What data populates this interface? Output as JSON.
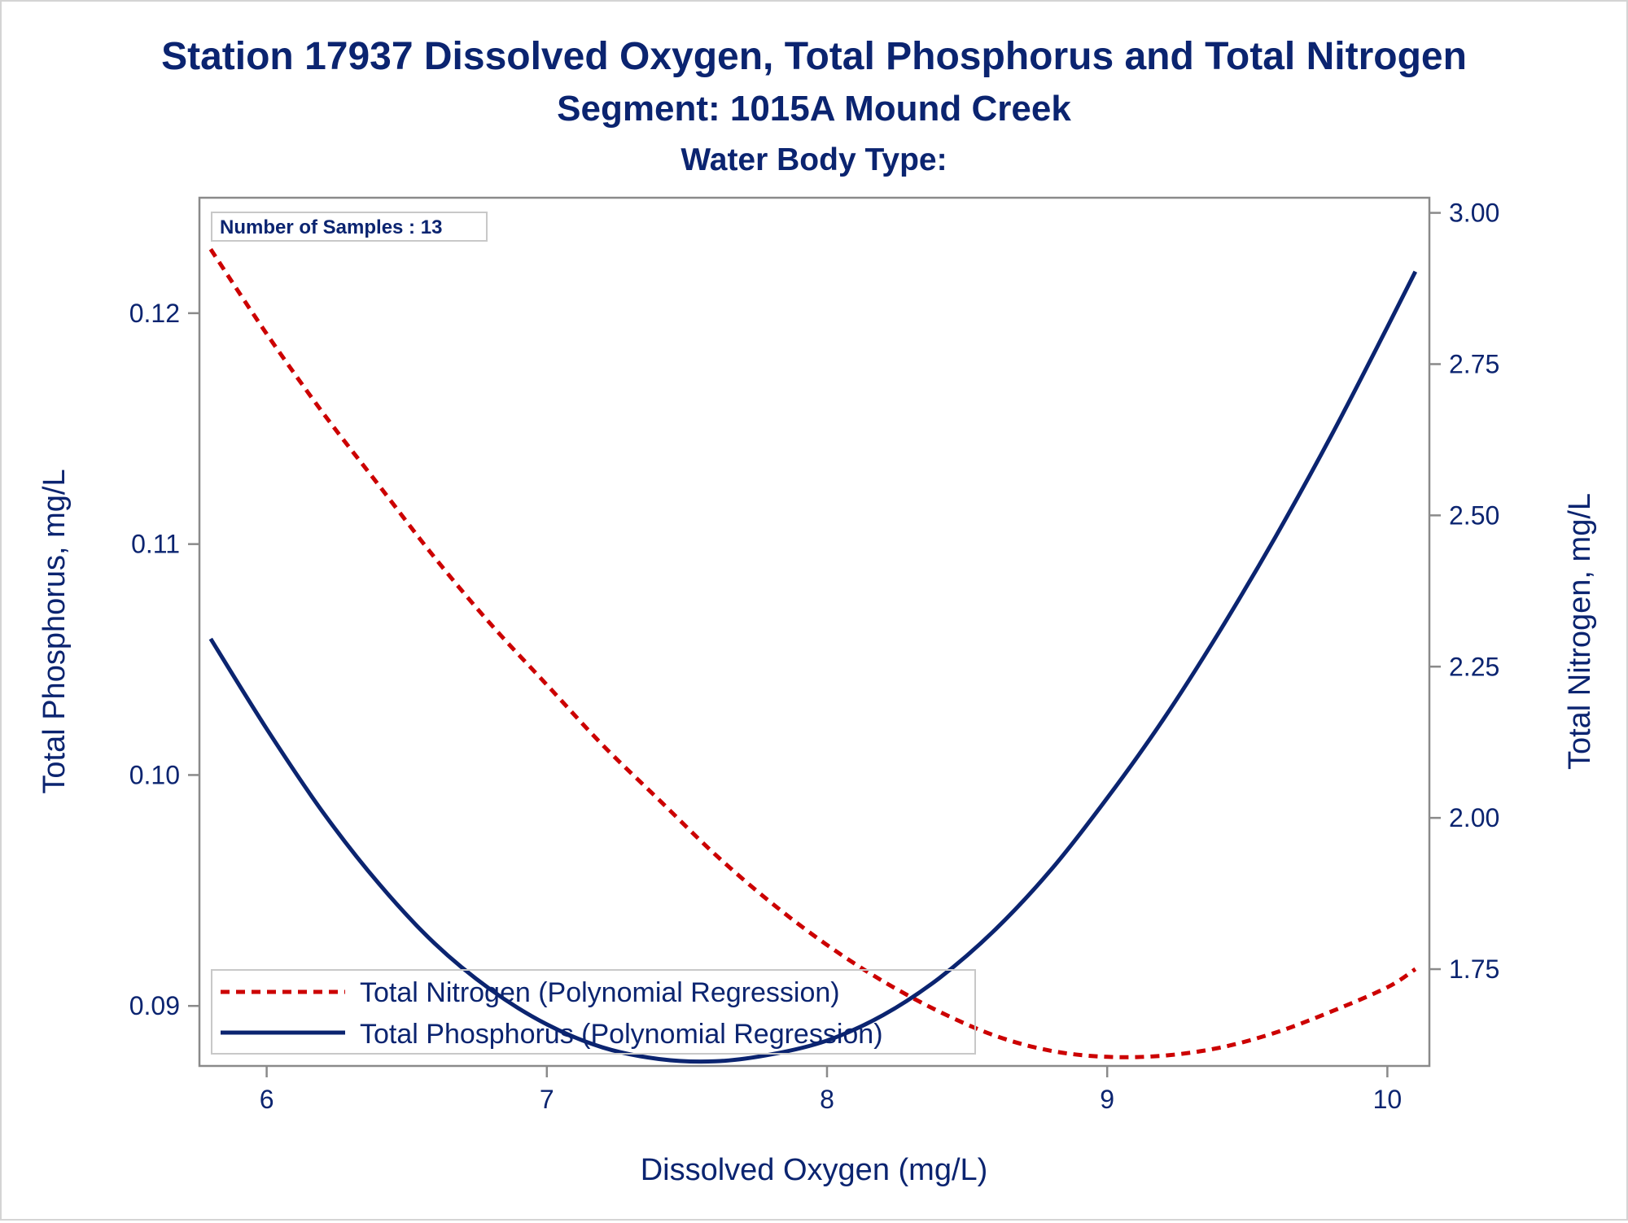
{
  "titles": {
    "line1": "Station 17937  Dissolved Oxygen, Total Phosphorus and Total Nitrogen",
    "line2": "Segment: 1015A  Mound Creek",
    "line3": "Water Body Type:"
  },
  "samples_label": "Number of Samples : 13",
  "colors": {
    "text": "#0b2470",
    "phosphorus": "#0b2470",
    "nitrogen": "#cc0000",
    "axis": "#8a8a8a",
    "frame": "#d4d4d4"
  },
  "chart_data": {
    "type": "line",
    "xlabel": "Dissolved Oxygen (mg/L)",
    "ylabel": "Total Phosphorus, mg/L",
    "y2label": "Total Nitrogen, mg/L",
    "xlim": [
      5.76,
      10.15
    ],
    "ylim": [
      0.0874,
      0.125
    ],
    "y2lim": [
      1.59,
      3.025
    ],
    "x_ticks": [
      "6",
      "7",
      "8",
      "9",
      "10"
    ],
    "y_ticks": [
      "0.09",
      "0.10",
      "0.11",
      "0.12"
    ],
    "y2_ticks": [
      "1.75",
      "2.00",
      "2.25",
      "2.50",
      "2.75",
      "3.00"
    ],
    "legend_position": "bottom-left",
    "grid": false,
    "series": [
      {
        "name": "Total Nitrogen (Polynomial Regression)",
        "axis": "y2",
        "style": "dashed",
        "color": "#cc0000",
        "x": [
          5.8,
          6.0,
          6.2,
          6.4,
          6.6,
          6.8,
          7.0,
          7.2,
          7.4,
          7.6,
          7.8,
          8.0,
          8.2,
          8.4,
          8.6,
          8.8,
          9.0,
          9.2,
          9.4,
          9.6,
          9.8,
          10.0,
          10.1
        ],
        "y": [
          2.94,
          2.8,
          2.67,
          2.55,
          2.43,
          2.32,
          2.22,
          2.12,
          2.03,
          1.94,
          1.86,
          1.79,
          1.73,
          1.68,
          1.64,
          1.615,
          1.605,
          1.607,
          1.62,
          1.645,
          1.68,
          1.72,
          1.75
        ]
      },
      {
        "name": "Total Phosphorus (Polynomial Regression)",
        "axis": "y",
        "style": "solid",
        "color": "#0b2470",
        "x": [
          5.8,
          6.0,
          6.2,
          6.4,
          6.6,
          6.8,
          7.0,
          7.2,
          7.4,
          7.6,
          7.8,
          8.0,
          8.2,
          8.4,
          8.6,
          8.8,
          9.0,
          9.2,
          9.4,
          9.6,
          9.8,
          10.0,
          10.1
        ],
        "y": [
          0.1059,
          0.102,
          0.0984,
          0.0953,
          0.0927,
          0.0907,
          0.0892,
          0.0882,
          0.0877,
          0.0876,
          0.0879,
          0.0885,
          0.0896,
          0.0912,
          0.0933,
          0.0959,
          0.099,
          0.1024,
          0.1062,
          0.1103,
          0.1147,
          0.1194,
          0.1218
        ]
      }
    ]
  }
}
